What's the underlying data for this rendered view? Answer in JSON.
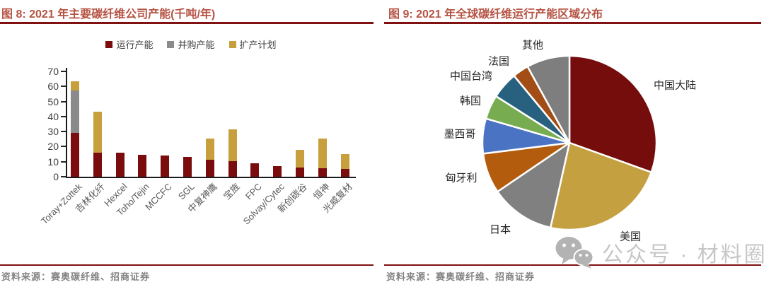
{
  "left_panel": {
    "title": "图 8: 2021 年主要碳纤维公司产能(千吨/年)",
    "source": "资料来源：赛奥碳纤维、招商证券",
    "accent_color": "#B65343",
    "rule_color": "#801111"
  },
  "right_panel": {
    "title": "图 9: 2021 年全球碳纤维运行产能区域分布",
    "source": "资料来源：赛奥碳纤维、招商证券",
    "watermark": {
      "icon": "wechat-icon",
      "text": "公众号 · 材料圈"
    }
  },
  "chart_data": [
    {
      "type": "bar",
      "stacked": true,
      "title": "2021 年主要碳纤维公司产能(千吨/年)",
      "unit": "千吨/年",
      "categories": [
        "Toray+Zottek",
        "吉林化纤",
        "Hexcel",
        "Toho/Tejin",
        "MCCFC",
        "SGL",
        "中复神鹰",
        "宝旌",
        "FPC",
        "Solvay/Cytec",
        "新创碳谷",
        "恒神",
        "光威复材"
      ],
      "series": [
        {
          "name": "运行产能",
          "color": "#7A0C0D",
          "values": [
            29,
            16,
            16,
            14.5,
            14,
            13,
            11.5,
            10.5,
            9,
            7,
            6,
            5.5,
            5
          ]
        },
        {
          "name": "并购产能",
          "color": "#8A8A8A",
          "values": [
            28.5,
            0,
            0,
            0,
            0,
            0,
            0,
            0,
            0,
            0,
            0,
            0,
            0
          ]
        },
        {
          "name": "扩产计划",
          "color": "#C79F3D",
          "values": [
            6,
            27,
            0,
            0,
            0,
            0,
            14,
            21,
            0,
            0,
            12,
            20,
            10
          ]
        }
      ],
      "ylim": [
        0,
        70
      ],
      "yticks": [
        0,
        10,
        20,
        30,
        40,
        50,
        60,
        70
      ],
      "grid": false,
      "legend_position": "top"
    },
    {
      "type": "pie",
      "title": "2021 年全球碳纤维运行产能区域分布",
      "start_angle_deg": 0,
      "direction": "clockwise",
      "slices": [
        {
          "label": "中国大陆",
          "value": 30.5,
          "color": "#740D0C"
        },
        {
          "label": "美国",
          "value": 23,
          "color": "#C5A041"
        },
        {
          "label": "日本",
          "value": 12,
          "color": "#808080"
        },
        {
          "label": "匈牙利",
          "value": 7.5,
          "color": "#B45C0E"
        },
        {
          "label": "墨西哥",
          "value": 6.5,
          "color": "#4A73C4"
        },
        {
          "label": "韩国",
          "value": 4.5,
          "color": "#77AC51"
        },
        {
          "label": "中国台湾",
          "value": 5,
          "color": "#27617F"
        },
        {
          "label": "法国",
          "value": 3,
          "color": "#A24D15"
        },
        {
          "label": "其他",
          "value": 8,
          "color": "#7E7E7E"
        }
      ]
    }
  ]
}
